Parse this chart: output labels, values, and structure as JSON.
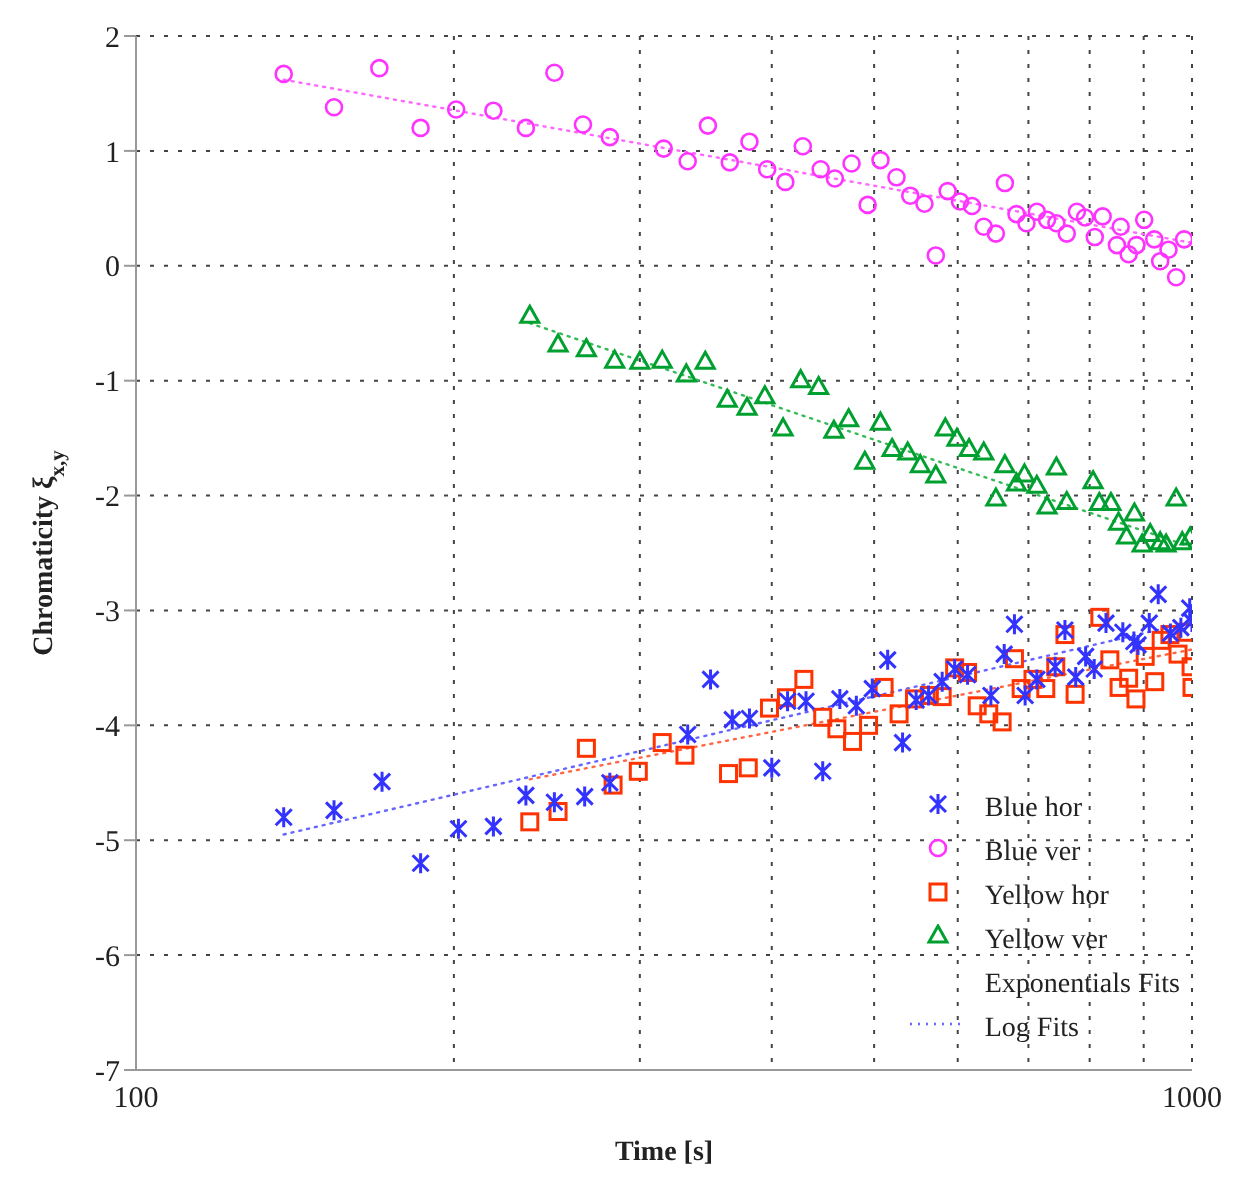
{
  "chart_data": {
    "type": "scatter",
    "xlabel": "Time [s]",
    "ylabel": "Chromaticity ξ$_{x,y}$",
    "log": "x",
    "xlim": [
      100,
      1000
    ],
    "xticks": [
      100,
      {
        "value": 200,
        "label": null
      },
      {
        "value": 300,
        "label": null
      },
      {
        "value": 400,
        "label": null
      },
      {
        "value": 500,
        "label": null
      },
      {
        "value": 600,
        "label": null
      },
      {
        "value": 700,
        "label": null
      },
      {
        "value": 800,
        "label": null
      },
      {
        "value": 900,
        "label": null
      },
      1000
    ],
    "ylim": [
      -7,
      2
    ],
    "yticks": [
      -7,
      -6,
      -5,
      -4,
      -3,
      -2,
      -1,
      0,
      1,
      2
    ],
    "grid": true,
    "legend": "bottom right",
    "annotations": [
      "Exponentials Fits"
    ],
    "series": [
      {
        "name": "Blue hor",
        "marker": "cross",
        "color": "#3333ff",
        "x": [
          138,
          154,
          171,
          186,
          202,
          218,
          234,
          249,
          266,
          281,
          333,
          350,
          367,
          381,
          400,
          414,
          431,
          447,
          464,
          481,
          498,
          515,
          532,
          548,
          563,
          580,
          596,
          613,
          645,
          664,
          679,
          695,
          713,
          742,
          758,
          776,
          793,
          808,
          829,
          860,
          881,
          889,
          911,
          929,
          954,
          976,
          995,
          1000
        ],
        "values": [
          -4.8,
          -4.74,
          -4.49,
          -5.2,
          -4.9,
          -4.88,
          -4.61,
          -4.67,
          -4.62,
          -4.5,
          -4.08,
          -3.6,
          -3.95,
          -3.94,
          -4.37,
          -3.79,
          -3.79,
          -4.4,
          -3.77,
          -3.83,
          -3.68,
          -3.43,
          -4.15,
          -3.78,
          -3.74,
          -3.62,
          -3.51,
          -3.56,
          -3.74,
          -3.38,
          -3.12,
          -3.74,
          -3.6,
          -3.49,
          -3.17,
          -3.58,
          -3.4,
          -3.51,
          -3.11,
          -3.19,
          -3.27,
          -3.3,
          -3.11,
          -2.86,
          -3.2,
          -3.15,
          -2.98,
          -3.1
        ]
      },
      {
        "name": "Blue ver",
        "marker": "circle",
        "color": "#ff33ff",
        "x": [
          138,
          154,
          170,
          186,
          201,
          218,
          234,
          249,
          265,
          281,
          316,
          333,
          348,
          365,
          381,
          396,
          412,
          428,
          445,
          459,
          476,
          493,
          507,
          525,
          541,
          558,
          572,
          587,
          603,
          619,
          635,
          652,
          665,
          682,
          697,
          713,
          729,
          744,
          761,
          778,
          792,
          809,
          823,
          849,
          856,
          871,
          886,
          901,
          921,
          933,
          950,
          966,
          983
        ],
        "values": [
          1.67,
          1.38,
          1.72,
          1.2,
          1.36,
          1.35,
          1.2,
          1.68,
          1.23,
          1.12,
          1.02,
          0.91,
          1.22,
          0.9,
          1.08,
          0.84,
          0.73,
          1.04,
          0.84,
          0.76,
          0.89,
          0.53,
          0.92,
          0.77,
          0.61,
          0.54,
          0.09,
          0.65,
          0.56,
          0.52,
          0.34,
          0.28,
          0.72,
          0.45,
          0.37,
          0.47,
          0.4,
          0.37,
          0.28,
          0.47,
          0.42,
          0.25,
          0.43,
          0.18,
          0.34,
          0.1,
          0.18,
          0.4,
          0.23,
          0.04,
          0.14,
          -0.1,
          0.23
        ]
      },
      {
        "name": "Yellow hor",
        "marker": "square",
        "color": "#ff3300",
        "x": [
          236,
          251,
          267,
          283,
          299,
          315,
          331,
          364,
          380,
          398,
          413,
          429,
          447,
          461,
          477,
          494,
          511,
          528,
          546,
          564,
          580,
          596,
          613,
          626,
          642,
          661,
          679,
          689,
          707,
          727,
          743,
          758,
          775,
          818,
          836,
          853,
          871,
          885,
          903,
          922,
          935,
          953,
          970,
          990,
          998,
          1000
        ],
        "values": [
          -4.84,
          -4.75,
          -4.2,
          -4.52,
          -4.4,
          -4.15,
          -4.26,
          -4.42,
          -4.37,
          -3.85,
          -3.76,
          -3.6,
          -3.93,
          -4.03,
          -4.14,
          -4.0,
          -3.67,
          -3.9,
          -3.77,
          -3.74,
          -3.75,
          -3.5,
          -3.54,
          -3.83,
          -3.9,
          -3.97,
          -3.42,
          -3.68,
          -3.6,
          -3.68,
          -3.49,
          -3.21,
          -3.73,
          -3.06,
          -3.43,
          -3.67,
          -3.59,
          -3.77,
          -3.4,
          -3.62,
          -3.26,
          -3.21,
          -3.38,
          -3.19,
          -3.49,
          -3.67
        ]
      },
      {
        "name": "Yellow ver",
        "marker": "triangle",
        "color": "#00a030",
        "x": [
          236,
          251,
          267,
          284,
          300,
          315,
          332,
          346,
          363,
          379,
          394,
          410,
          426,
          443,
          458,
          473,
          490,
          507,
          520,
          538,
          553,
          572,
          584,
          599,
          615,
          635,
          652,
          665,
          682,
          694,
          713,
          729,
          744,
          761,
          806,
          817,
          838,
          852,
          867,
          882,
          897,
          913,
          933,
          945,
          966,
          979,
          996
        ],
        "values": [
          -0.44,
          -0.69,
          -0.73,
          -0.83,
          -0.84,
          -0.83,
          -0.95,
          -0.84,
          -1.17,
          -1.24,
          -1.14,
          -1.42,
          -1.0,
          -1.06,
          -1.44,
          -1.34,
          -1.71,
          -1.37,
          -1.6,
          -1.63,
          -1.74,
          -1.83,
          -1.42,
          -1.51,
          -1.6,
          -1.63,
          -2.03,
          -1.74,
          -1.9,
          -1.82,
          -1.92,
          -2.1,
          -1.76,
          -2.06,
          -1.88,
          -2.07,
          -2.07,
          -2.24,
          -2.36,
          -2.16,
          -2.43,
          -2.34,
          -2.41,
          -2.43,
          -2.03,
          -2.41,
          -2.37
        ]
      },
      {
        "name": "Log Fits",
        "type": "line",
        "marker": "none",
        "line_style": "dotted",
        "color": "#6666ff",
        "x": [
          138,
          1000
        ],
        "values": [
          -4.95,
          -3.1
        ]
      },
      {
        "type": "line",
        "marker": "none",
        "line_style": "dotted",
        "color": "#ff66ff",
        "x": [
          138,
          1000
        ],
        "values": [
          1.62,
          0.2
        ]
      },
      {
        "type": "line",
        "marker": "none",
        "line_style": "dotted",
        "color": "#ff6644",
        "x": [
          236,
          1000
        ],
        "values": [
          -4.47,
          -3.34
        ]
      },
      {
        "type": "line",
        "marker": "none",
        "line_style": "dotted",
        "color": "#33bb55",
        "x": [
          236,
          1000
        ],
        "values": [
          -0.5,
          -2.45
        ]
      }
    ]
  }
}
